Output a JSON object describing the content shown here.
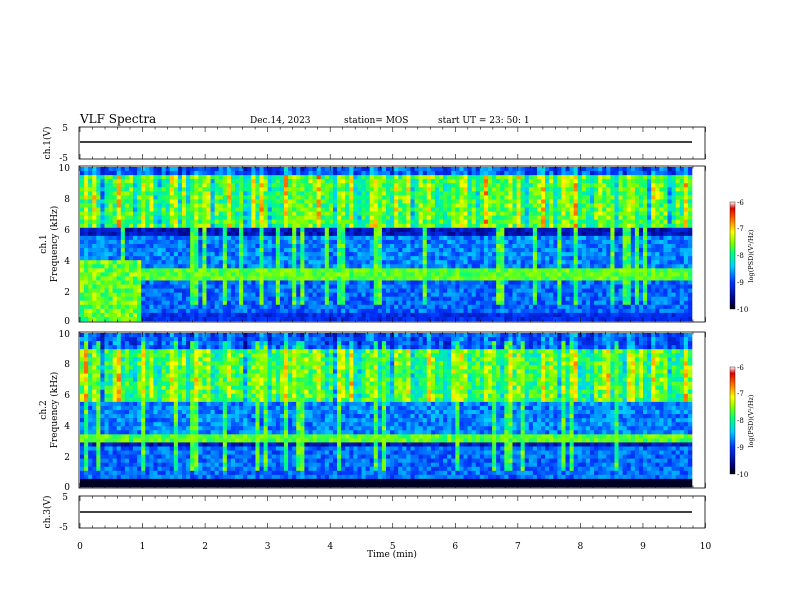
{
  "header": {
    "title": "VLF Spectra",
    "date": "Dec.14, 2023",
    "station": "station= MOS",
    "start_ut": "start  UT  =   23: 50: 1"
  },
  "chart_data": [
    {
      "type": "line",
      "name": "ch1-waveform",
      "ylabel": "ch.1(V)",
      "ylim": [
        -5,
        5
      ],
      "yticks": [
        "5",
        "-5"
      ],
      "xlim": [
        0,
        10
      ],
      "series": [
        {
          "values": [
            0,
            0
          ]
        }
      ]
    },
    {
      "type": "heatmap",
      "name": "ch1-spectrogram",
      "ylabel": "Frequency (kHz)",
      "ychannel": "ch.1",
      "ylim": [
        0,
        10
      ],
      "yticks": [
        "0",
        "2",
        "4",
        "6",
        "8",
        "10"
      ],
      "xlim": [
        0,
        9.85
      ],
      "colorbar": {
        "label": "log(PSD)(V²/Hz)",
        "range": [
          -10,
          -6
        ],
        "ticks": [
          "-6",
          "-7",
          "-8",
          "-9",
          "-10"
        ]
      },
      "features": [
        {
          "band_khz": [
            2.7,
            3.5
          ],
          "level": -7.6
        },
        {
          "band_khz": [
            6.0,
            9.5
          ],
          "level": -7.0
        },
        {
          "band_khz": [
            0.0,
            0.6
          ],
          "level": -9.2
        }
      ]
    },
    {
      "type": "heatmap",
      "name": "ch2-spectrogram",
      "ylabel": "Frequency (kHz)",
      "ychannel": "ch.2",
      "ylim": [
        0,
        10
      ],
      "yticks": [
        "0",
        "2",
        "4",
        "6",
        "8",
        "10"
      ],
      "xlim": [
        0,
        9.85
      ],
      "colorbar": {
        "label": "log(PSD)(V²/Hz)",
        "range": [
          -10,
          -6
        ],
        "ticks": [
          "-6",
          "-7",
          "-8",
          "-9",
          "-10"
        ]
      },
      "features": [
        {
          "band_khz": [
            2.9,
            3.7
          ],
          "level": -7.8
        },
        {
          "band_khz": [
            5.5,
            9.0
          ],
          "level": -7.2
        }
      ]
    },
    {
      "type": "line",
      "name": "ch3-waveform",
      "ylabel": "ch.3(V)",
      "ylim": [
        -5,
        5
      ],
      "yticks": [
        "5",
        "-5"
      ],
      "xlim": [
        0,
        10
      ],
      "series": [
        {
          "values": [
            0,
            0
          ]
        }
      ]
    }
  ],
  "xaxis": {
    "label": "Time  (min)",
    "range": [
      0,
      10
    ],
    "ticks": [
      "0",
      "1",
      "2",
      "3",
      "4",
      "5",
      "6",
      "7",
      "8",
      "9",
      "10"
    ]
  }
}
